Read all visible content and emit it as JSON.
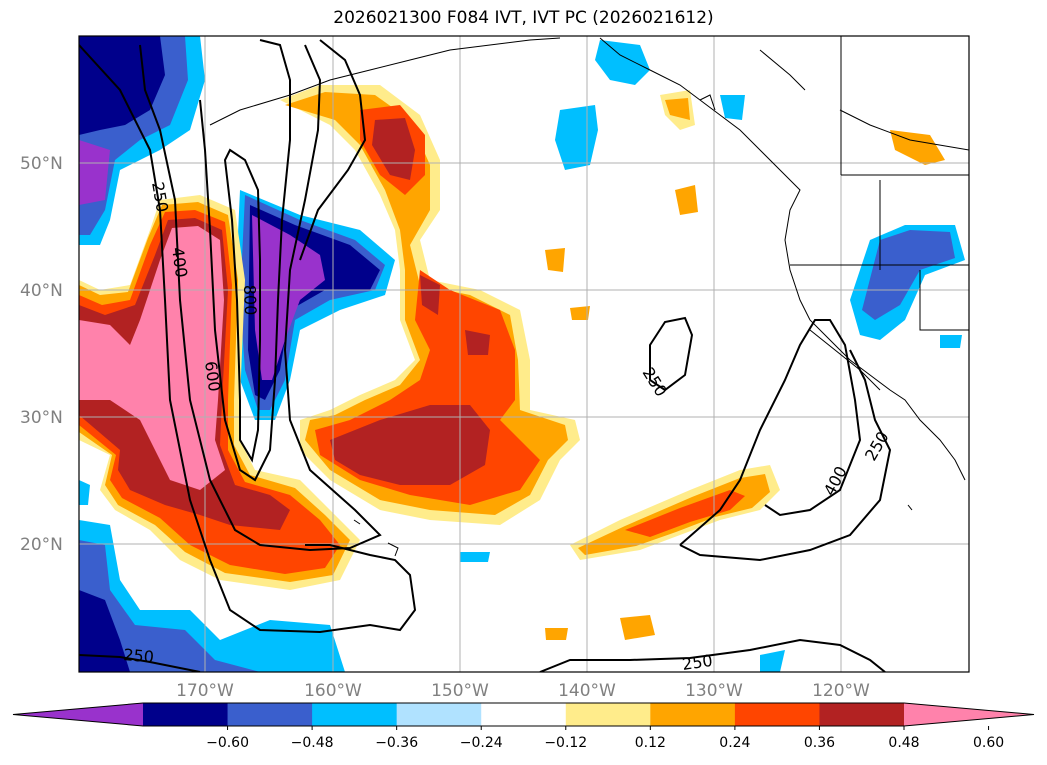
{
  "title": "2026021300 F084 IVT, IVT PC (2026021612)",
  "lat_labels": [
    "50°N",
    "40°N",
    "30°N",
    "20°N"
  ],
  "lon_labels": [
    "170°W",
    "160°W",
    "150°W",
    "140°W",
    "130°W",
    "120°W"
  ],
  "contour_labels": [
    "250",
    "400",
    "600",
    "800",
    "250",
    "250",
    "400",
    "250",
    "250"
  ],
  "colorbar": {
    "ticks": [
      "−0.60",
      "−0.48",
      "−0.36",
      "−0.24",
      "−0.12",
      "0.12",
      "0.24",
      "0.36",
      "0.48",
      "0.60"
    ],
    "colors": [
      "#9932CC",
      "#00008B",
      "#3A5FCD",
      "#00BFFF",
      "#B0E2FF",
      "#FFFFFF",
      "#FFEC8B",
      "#FFA500",
      "#FF4500",
      "#B22222",
      "#FF82AB"
    ]
  },
  "colors": {
    "grid": "#b0b0b0",
    "contour": "#000000",
    "coast": "#000000"
  }
}
